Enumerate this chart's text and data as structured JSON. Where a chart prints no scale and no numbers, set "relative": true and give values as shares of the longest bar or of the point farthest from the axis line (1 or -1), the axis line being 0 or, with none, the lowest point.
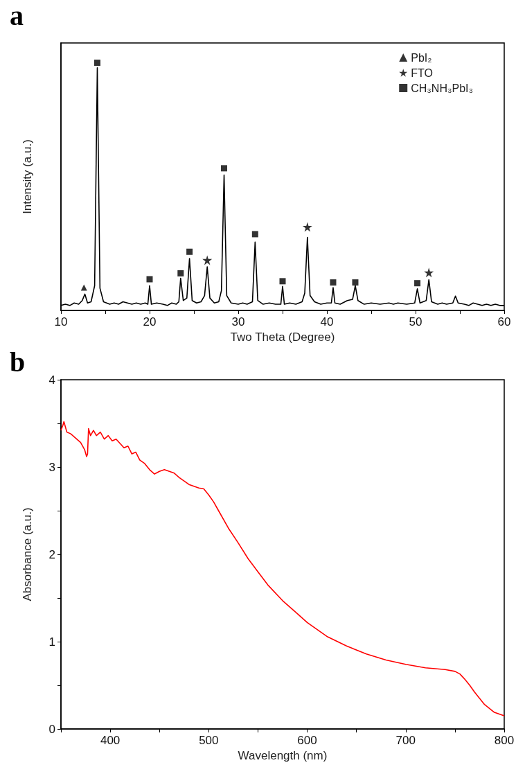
{
  "chart_data": [
    {
      "type": "line",
      "relative": true,
      "xlabel": "Two Theta (Degree)",
      "ylabel": "Intensity (a.u.)",
      "annotations": [
        "a"
      ],
      "xlim": [
        10,
        60
      ],
      "xticks": [
        10,
        {
          "value": 15,
          "label": null
        },
        20,
        {
          "value": 25,
          "label": null
        },
        30,
        {
          "value": 35,
          "label": null
        },
        40,
        {
          "value": 45,
          "label": null
        },
        50,
        {
          "value": 55,
          "label": null
        },
        60
      ],
      "legend": "top right",
      "grid": false,
      "series": [
        {
          "color": "#000000",
          "marker": "none",
          "x": [
            10,
            10.5,
            11,
            11.5,
            12,
            12.4,
            12.7,
            13,
            13.4,
            13.8,
            14.1,
            14.4,
            14.8,
            15.5,
            16,
            16.5,
            17,
            17.5,
            18,
            18.5,
            19,
            19.5,
            19.8,
            20,
            20.2,
            20.8,
            21.5,
            22,
            22.5,
            23,
            23.3,
            23.5,
            23.8,
            24.2,
            24.5,
            24.8,
            25.3,
            25.8,
            26.2,
            26.5,
            26.8,
            27.3,
            27.8,
            28.1,
            28.4,
            28.7,
            29.2,
            30,
            30.5,
            31,
            31.6,
            31.9,
            32.2,
            32.8,
            33.5,
            34.2,
            34.8,
            35,
            35.2,
            35.8,
            36.5,
            37.2,
            37.5,
            37.8,
            38.1,
            38.6,
            39.3,
            40,
            40.5,
            40.7,
            40.9,
            41.5,
            42.3,
            42.9,
            43.2,
            43.5,
            44.2,
            45,
            46,
            47,
            47.5,
            48,
            49,
            49.9,
            50.2,
            50.5,
            51.2,
            51.5,
            51.8,
            52.5,
            53,
            53.5,
            54.2,
            54.5,
            54.8,
            55.5,
            56,
            56.5,
            57,
            57.5,
            58,
            58.5,
            59,
            59.5,
            60
          ],
          "values": [
            0.02,
            0.025,
            0.02,
            0.03,
            0.025,
            0.04,
            0.066,
            0.03,
            0.035,
            0.1,
            0.98,
            0.09,
            0.035,
            0.025,
            0.03,
            0.025,
            0.035,
            0.03,
            0.025,
            0.03,
            0.025,
            0.03,
            0.025,
            0.1,
            0.025,
            0.03,
            0.025,
            0.02,
            0.03,
            0.025,
            0.035,
            0.13,
            0.04,
            0.05,
            0.21,
            0.04,
            0.03,
            0.035,
            0.06,
            0.176,
            0.05,
            0.03,
            0.035,
            0.08,
            0.547,
            0.06,
            0.03,
            0.025,
            0.03,
            0.025,
            0.035,
            0.276,
            0.04,
            0.025,
            0.03,
            0.025,
            0.025,
            0.097,
            0.025,
            0.03,
            0.025,
            0.035,
            0.07,
            0.295,
            0.06,
            0.035,
            0.025,
            0.03,
            0.03,
            0.092,
            0.03,
            0.025,
            0.04,
            0.045,
            0.1,
            0.04,
            0.025,
            0.03,
            0.025,
            0.03,
            0.025,
            0.03,
            0.025,
            0.03,
            0.087,
            0.03,
            0.04,
            0.124,
            0.035,
            0.025,
            0.03,
            0.025,
            0.03,
            0.058,
            0.03,
            0.025,
            0.02,
            0.03,
            0.025,
            0.02,
            0.025,
            0.02,
            0.025,
            0.02,
            0.02
          ]
        },
        {
          "name": "PbI₂",
          "type": "scatter",
          "marker": "triangle",
          "color": "#000000",
          "x": [
            12.6
          ],
          "values": [
            0.092
          ]
        },
        {
          "name": "FTO",
          "type": "scatter",
          "marker": "star",
          "color": "#000000",
          "x": [
            26.5,
            37.8,
            51.5
          ],
          "values": [
            0.203,
            0.337,
            0.153
          ]
        },
        {
          "name": "CH₃NH₃PbI₃",
          "type": "scatter",
          "marker": "square",
          "color": "#000000",
          "x": [
            14.1,
            20.0,
            23.5,
            24.5,
            28.4,
            31.9,
            35.0,
            40.7,
            43.2,
            50.2
          ],
          "values": [
            1.0,
            0.126,
            0.15,
            0.237,
            0.574,
            0.308,
            0.118,
            0.113,
            0.113,
            0.11
          ]
        }
      ]
    },
    {
      "type": "line",
      "xlabel": "Wavelength (nm)",
      "ylabel": "Absorbance (a.u.)",
      "annotations": [
        "b"
      ],
      "xlim": [
        350,
        800
      ],
      "xticks": [
        {
          "value": 350,
          "label": null
        },
        400,
        {
          "value": 450,
          "label": null
        },
        500,
        {
          "value": 550,
          "label": null
        },
        600,
        {
          "value": 650,
          "label": null
        },
        700,
        {
          "value": 750,
          "label": null
        },
        800
      ],
      "ylim": [
        0,
        4
      ],
      "yticks": [
        0,
        {
          "value": 0.5,
          "label": null
        },
        1,
        {
          "value": 1.5,
          "label": null
        },
        2,
        {
          "value": 2.5,
          "label": null
        },
        3,
        {
          "value": 3.5,
          "label": null
        },
        4
      ],
      "grid": false,
      "legend": false,
      "marker": "none",
      "series": [
        {
          "color": "#ff0000",
          "x": [
            350,
            352,
            353,
            356,
            360,
            365,
            370,
            374,
            376,
            377,
            378,
            380,
            383,
            386,
            390,
            394,
            398,
            402,
            406,
            410,
            414,
            418,
            422,
            426,
            430,
            435,
            440,
            445,
            450,
            455,
            460,
            465,
            470,
            475,
            480,
            485,
            490,
            495,
            500,
            505,
            510,
            520,
            530,
            540,
            550,
            560,
            575,
            590,
            600,
            620,
            640,
            660,
            680,
            700,
            720,
            740,
            750,
            755,
            760,
            765,
            770,
            780,
            790,
            800
          ],
          "values": [
            3.42,
            3.48,
            3.52,
            3.4,
            3.38,
            3.33,
            3.28,
            3.2,
            3.12,
            3.15,
            3.44,
            3.36,
            3.42,
            3.36,
            3.4,
            3.32,
            3.36,
            3.3,
            3.32,
            3.27,
            3.22,
            3.24,
            3.15,
            3.17,
            3.08,
            3.04,
            2.97,
            2.92,
            2.95,
            2.97,
            2.95,
            2.93,
            2.88,
            2.84,
            2.8,
            2.78,
            2.76,
            2.75,
            2.68,
            2.6,
            2.5,
            2.3,
            2.13,
            1.95,
            1.8,
            1.65,
            1.47,
            1.32,
            1.22,
            1.06,
            0.95,
            0.86,
            0.79,
            0.74,
            0.7,
            0.68,
            0.66,
            0.63,
            0.57,
            0.5,
            0.42,
            0.28,
            0.19,
            0.15
          ]
        }
      ]
    }
  ]
}
